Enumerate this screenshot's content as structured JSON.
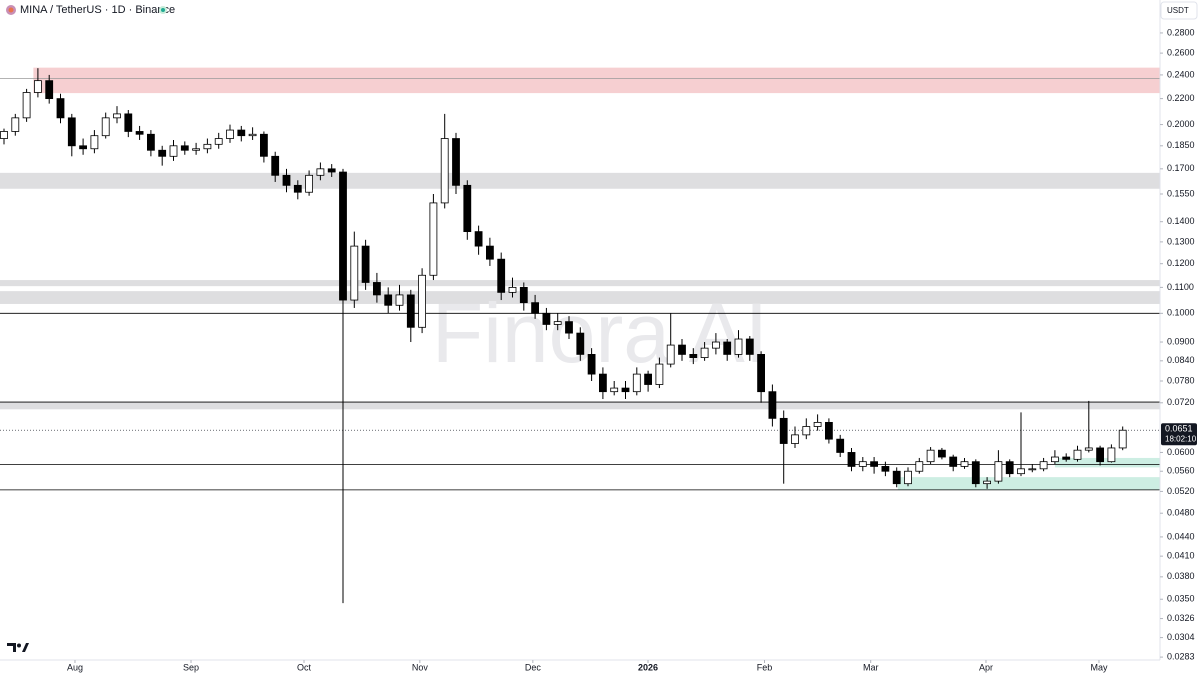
{
  "chart_data": {
    "type": "candlestick",
    "title": "MINA / TetherUS · 1D · Binance",
    "currency": "USDT",
    "watermark": "Finora AI",
    "log_scale": true,
    "ylim": [
      0.028,
      0.316
    ],
    "yticks": [
      {
        "value": 0.28,
        "label": "0.2800"
      },
      {
        "value": 0.26,
        "label": "0.2600"
      },
      {
        "value": 0.24,
        "label": "0.2400"
      },
      {
        "value": 0.22,
        "label": "0.2200"
      },
      {
        "value": 0.2,
        "label": "0.2000"
      },
      {
        "value": 0.185,
        "label": "0.1850"
      },
      {
        "value": 0.17,
        "label": "0.1700"
      },
      {
        "value": 0.155,
        "label": "0.1550"
      },
      {
        "value": 0.14,
        "label": "0.1400"
      },
      {
        "value": 0.13,
        "label": "0.1300"
      },
      {
        "value": 0.12,
        "label": "0.1200"
      },
      {
        "value": 0.11,
        "label": "0.1100"
      },
      {
        "value": 0.1,
        "label": "0.1000"
      },
      {
        "value": 0.09,
        "label": "0.0900"
      },
      {
        "value": 0.084,
        "label": "0.0840"
      },
      {
        "value": 0.078,
        "label": "0.0780"
      },
      {
        "value": 0.072,
        "label": "0.0720"
      },
      {
        "value": 0.06,
        "label": "0.0600"
      },
      {
        "value": 0.056,
        "label": "0.0560"
      },
      {
        "value": 0.052,
        "label": "0.0520"
      },
      {
        "value": 0.048,
        "label": "0.0480"
      },
      {
        "value": 0.044,
        "label": "0.0440"
      },
      {
        "value": 0.041,
        "label": "0.0410"
      },
      {
        "value": 0.038,
        "label": "0.0380"
      },
      {
        "value": 0.035,
        "label": "0.0350"
      },
      {
        "value": 0.0326,
        "label": "0.0326"
      },
      {
        "value": 0.0304,
        "label": "0.0304"
      },
      {
        "value": 0.0283,
        "label": "0.0283"
      }
    ],
    "xticks": [
      {
        "value": 6.28,
        "label": "Aug"
      },
      {
        "value": 16.55,
        "label": "Sep"
      },
      {
        "value": 26.55,
        "label": "Oct"
      },
      {
        "value": 36.8,
        "label": "Nov"
      },
      {
        "value": 46.8,
        "label": "Dec"
      },
      {
        "value": 56.99,
        "label": "2026"
      },
      {
        "value": 67.3,
        "label": "Feb"
      },
      {
        "value": 76.7,
        "label": "Mar"
      },
      {
        "value": 86.9,
        "label": "Apr"
      },
      {
        "value": 96.9,
        "label": "May"
      }
    ],
    "up_color": "#ffffff",
    "down_color": "#000000",
    "wick_color": "#000000",
    "categories": [
      null,
      null,
      null,
      null,
      null,
      null,
      null,
      null,
      null,
      null,
      null,
      null,
      null,
      null,
      null,
      null,
      null,
      null,
      null,
      null,
      null,
      null,
      null,
      null,
      null,
      null,
      null,
      null,
      null,
      null,
      null,
      null,
      null,
      null,
      null,
      null,
      null,
      null,
      null,
      null,
      null,
      null,
      null,
      null,
      null,
      null,
      null,
      null,
      null,
      null,
      null,
      null,
      null,
      null,
      null,
      null,
      null,
      null,
      null,
      null,
      null,
      null,
      null,
      null,
      null,
      null,
      null,
      null,
      null,
      null,
      null,
      null,
      null,
      null,
      null,
      null,
      null,
      null,
      null,
      null,
      null,
      null,
      null,
      null,
      null,
      null,
      null,
      null,
      null,
      null,
      null,
      null,
      null,
      null,
      null,
      null,
      null,
      null,
      null,
      null
    ],
    "ohlc": [
      [
        0.19,
        0.197,
        0.186,
        0.195
      ],
      [
        0.195,
        0.208,
        0.192,
        0.205
      ],
      [
        0.205,
        0.228,
        0.202,
        0.225
      ],
      [
        0.225,
        0.246,
        0.221,
        0.235
      ],
      [
        0.235,
        0.24,
        0.216,
        0.22
      ],
      [
        0.22,
        0.224,
        0.201,
        0.205
      ],
      [
        0.205,
        0.208,
        0.178,
        0.185
      ],
      [
        0.185,
        0.19,
        0.179,
        0.183
      ],
      [
        0.183,
        0.196,
        0.18,
        0.192
      ],
      [
        0.192,
        0.209,
        0.19,
        0.205
      ],
      [
        0.205,
        0.214,
        0.201,
        0.208
      ],
      [
        0.208,
        0.211,
        0.191,
        0.195
      ],
      [
        0.195,
        0.199,
        0.189,
        0.193
      ],
      [
        0.193,
        0.196,
        0.178,
        0.182
      ],
      [
        0.182,
        0.185,
        0.172,
        0.178
      ],
      [
        0.178,
        0.189,
        0.175,
        0.185
      ],
      [
        0.185,
        0.188,
        0.179,
        0.182
      ],
      [
        0.182,
        0.187,
        0.179,
        0.183
      ],
      [
        0.183,
        0.19,
        0.18,
        0.186
      ],
      [
        0.186,
        0.194,
        0.183,
        0.19
      ],
      [
        0.19,
        0.2,
        0.187,
        0.196
      ],
      [
        0.196,
        0.199,
        0.188,
        0.192
      ],
      [
        0.192,
        0.198,
        0.189,
        0.193
      ],
      [
        0.193,
        0.195,
        0.174,
        0.178
      ],
      [
        0.178,
        0.181,
        0.162,
        0.166
      ],
      [
        0.166,
        0.17,
        0.156,
        0.16
      ],
      [
        0.16,
        0.163,
        0.152,
        0.156
      ],
      [
        0.156,
        0.169,
        0.154,
        0.166
      ],
      [
        0.166,
        0.174,
        0.163,
        0.17
      ],
      [
        0.17,
        0.173,
        0.165,
        0.168
      ],
      [
        0.168,
        0.17,
        0.0345,
        0.105
      ],
      [
        0.105,
        0.135,
        0.102,
        0.128
      ],
      [
        0.128,
        0.131,
        0.109,
        0.112
      ],
      [
        0.112,
        0.116,
        0.104,
        0.107
      ],
      [
        0.107,
        0.11,
        0.1,
        0.103
      ],
      [
        0.103,
        0.111,
        0.101,
        0.107
      ],
      [
        0.107,
        0.109,
        0.09,
        0.095
      ],
      [
        0.095,
        0.118,
        0.093,
        0.115
      ],
      [
        0.115,
        0.155,
        0.113,
        0.15
      ],
      [
        0.15,
        0.208,
        0.147,
        0.19
      ],
      [
        0.19,
        0.194,
        0.155,
        0.16
      ],
      [
        0.16,
        0.163,
        0.131,
        0.135
      ],
      [
        0.135,
        0.138,
        0.124,
        0.128
      ],
      [
        0.128,
        0.132,
        0.119,
        0.122
      ],
      [
        0.122,
        0.125,
        0.105,
        0.108
      ],
      [
        0.108,
        0.114,
        0.106,
        0.11
      ],
      [
        0.11,
        0.112,
        0.101,
        0.104
      ],
      [
        0.104,
        0.107,
        0.098,
        0.1
      ],
      [
        0.1,
        0.102,
        0.094,
        0.096
      ],
      [
        0.096,
        0.1,
        0.094,
        0.097
      ],
      [
        0.097,
        0.099,
        0.091,
        0.093
      ],
      [
        0.093,
        0.095,
        0.084,
        0.086
      ],
      [
        0.086,
        0.088,
        0.078,
        0.08
      ],
      [
        0.08,
        0.082,
        0.073,
        0.075
      ],
      [
        0.075,
        0.078,
        0.074,
        0.076
      ],
      [
        0.076,
        0.078,
        0.073,
        0.075
      ],
      [
        0.075,
        0.082,
        0.074,
        0.08
      ],
      [
        0.08,
        0.081,
        0.075,
        0.077
      ],
      [
        0.077,
        0.085,
        0.076,
        0.083
      ],
      [
        0.083,
        0.1,
        0.082,
        0.089
      ],
      [
        0.089,
        0.091,
        0.084,
        0.086
      ],
      [
        0.086,
        0.088,
        0.083,
        0.085
      ],
      [
        0.085,
        0.09,
        0.084,
        0.088
      ],
      [
        0.088,
        0.093,
        0.086,
        0.09
      ],
      [
        0.09,
        0.091,
        0.084,
        0.086
      ],
      [
        0.086,
        0.094,
        0.085,
        0.091
      ],
      [
        0.091,
        0.092,
        0.084,
        0.086
      ],
      [
        0.086,
        0.087,
        0.072,
        0.075
      ],
      [
        0.075,
        0.077,
        0.066,
        0.068
      ],
      [
        0.068,
        0.07,
        0.0535,
        0.062
      ],
      [
        0.062,
        0.066,
        0.061,
        0.064
      ],
      [
        0.064,
        0.068,
        0.063,
        0.066
      ],
      [
        0.066,
        0.069,
        0.065,
        0.067
      ],
      [
        0.067,
        0.068,
        0.062,
        0.063
      ],
      [
        0.063,
        0.064,
        0.059,
        0.06
      ],
      [
        0.06,
        0.061,
        0.056,
        0.057
      ],
      [
        0.057,
        0.059,
        0.056,
        0.058
      ],
      [
        0.058,
        0.059,
        0.0555,
        0.057
      ],
      [
        0.057,
        0.058,
        0.055,
        0.056
      ],
      [
        0.056,
        0.0568,
        0.0528,
        0.0535
      ],
      [
        0.0535,
        0.0568,
        0.053,
        0.056
      ],
      [
        0.056,
        0.0588,
        0.0555,
        0.058
      ],
      [
        0.058,
        0.0612,
        0.0575,
        0.0605
      ],
      [
        0.0605,
        0.061,
        0.0585,
        0.059
      ],
      [
        0.059,
        0.0595,
        0.056,
        0.057
      ],
      [
        0.057,
        0.0588,
        0.0565,
        0.058
      ],
      [
        0.058,
        0.0585,
        0.0528,
        0.0535
      ],
      [
        0.0535,
        0.0548,
        0.0525,
        0.054
      ],
      [
        0.054,
        0.0605,
        0.0535,
        0.058
      ],
      [
        0.058,
        0.0585,
        0.0548,
        0.0555
      ],
      [
        0.0555,
        0.0695,
        0.055,
        0.0565
      ],
      [
        0.0565,
        0.0575,
        0.0558,
        0.0565
      ],
      [
        0.0565,
        0.0588,
        0.056,
        0.058
      ],
      [
        0.058,
        0.0605,
        0.0575,
        0.059
      ],
      [
        0.059,
        0.0598,
        0.058,
        0.0585
      ],
      [
        0.0585,
        0.0615,
        0.058,
        0.0605
      ],
      [
        0.0605,
        0.0725,
        0.06,
        0.061
      ],
      [
        0.061,
        0.0615,
        0.0572,
        0.058
      ],
      [
        0.058,
        0.0618,
        0.0578,
        0.061
      ],
      [
        0.061,
        0.066,
        0.0605,
        0.0651
      ]
    ],
    "zones": [
      {
        "top": 0.2465,
        "bottom": 0.2245,
        "color": "#f6cfd1",
        "start": 2.6
      },
      {
        "top": 0.1675,
        "bottom": 0.158,
        "color": "#dedee0",
        "start": -1
      },
      {
        "top": 0.113,
        "bottom": 0.1105,
        "color": "#dedee0",
        "start": -1
      },
      {
        "top": 0.1085,
        "bottom": 0.1035,
        "color": "#dedee0",
        "start": -1
      },
      {
        "top": 0.0722,
        "bottom": 0.0703,
        "color": "#dedee0",
        "start": -1
      },
      {
        "top": 0.0588,
        "bottom": 0.0568,
        "color": "#cdeee3",
        "start": 93
      },
      {
        "top": 0.0548,
        "bottom": 0.0523,
        "color": "#cdeee3",
        "start": 79.1
      }
    ],
    "levels": [
      {
        "value": 0.237,
        "color": "#9a9a9a"
      },
      {
        "value": 0.1,
        "color": "#000000"
      },
      {
        "value": 0.0722,
        "color": "#000000"
      },
      {
        "value": 0.0574,
        "color": "#000000"
      },
      {
        "value": 0.0523,
        "color": "#000000"
      }
    ],
    "current_price": {
      "value": 0.0651,
      "label": "0.0651",
      "countdown": "18:02:10"
    }
  }
}
